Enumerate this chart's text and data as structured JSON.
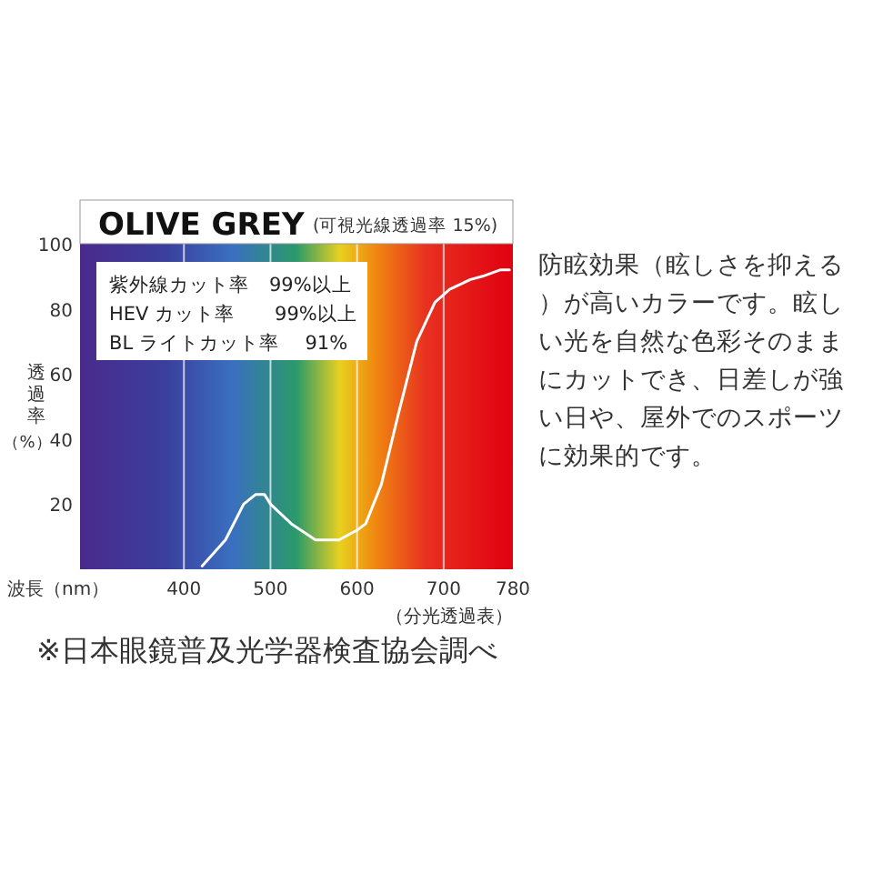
{
  "chart_data": {
    "type": "line",
    "title": "OLIVE GREY",
    "subtitle": "(可視光線透過率 15%)",
    "xlabel": "波長（nm）",
    "ylabel": "透過率（%）",
    "annotations": [
      "紫外線カット率　99%以上",
      "HEV カット率　　99%以上",
      "BL ライトカット率　 91%",
      "防眩効果（眩しさを抑える）が高いカラーです。眩しい光を自然な色彩そのままにカットでき、日差しが強い日や、屋外でのスポーツに効果的です。",
      "（分光透過表）",
      "※日本眼鏡普及光学器検査協会調べ"
    ],
    "series": [
      {
        "color": "#ffffff",
        "x": [
          421,
          448,
          469,
          483,
          493,
          500,
          524,
          552,
          579,
          600,
          610,
          628,
          648,
          669,
          690,
          707,
          731,
          745,
          766,
          776
        ],
        "values": [
          1,
          9,
          20,
          23,
          23,
          20,
          14,
          9,
          9,
          12,
          14,
          26,
          48,
          70,
          82,
          86,
          89,
          90,
          92,
          92
        ]
      }
    ],
    "xlim": [
      280,
      780
    ],
    "xticks": [
      400,
      500,
      600,
      700,
      780
    ],
    "ylim": [
      0,
      100
    ],
    "yticks": [
      20,
      40,
      60,
      80,
      100
    ],
    "grid": "x",
    "marker": "none",
    "line_style": "solid"
  }
}
